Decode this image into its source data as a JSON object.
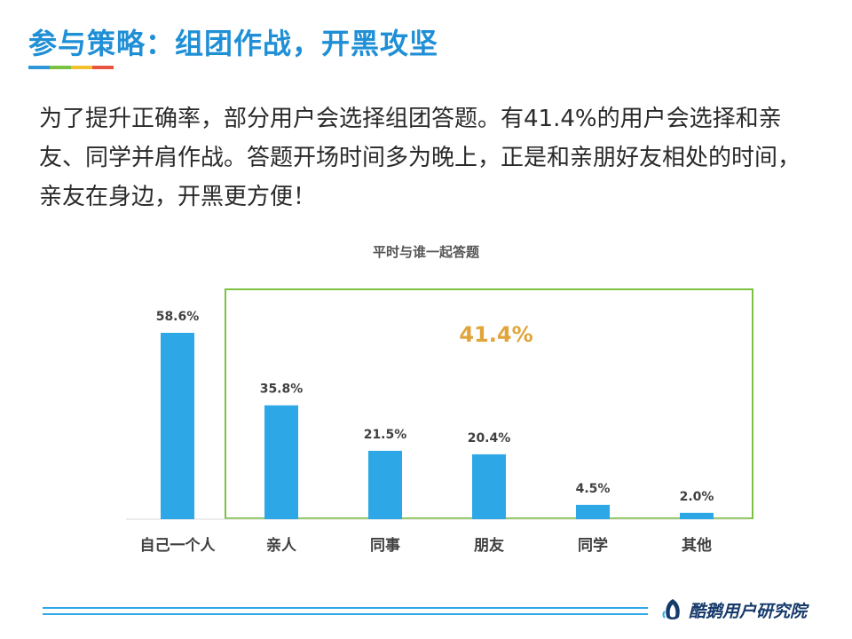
{
  "slide": {
    "title": "参与策略：组团作战，开黑攻坚",
    "paragraph": "为了提升正确率，部分用户会选择组团答题。有41.4%的用户会选择和亲友、同学并肩作战。答题开场时间多为晚上，正是和亲朋好友相处的时间，亲友在身边，开黑更方便！",
    "underline_colors": [
      "#2e97d8",
      "#7cc242",
      "#f2c12e",
      "#e8543f"
    ],
    "title_color": "#1f8fd6"
  },
  "chart_data": {
    "type": "bar",
    "title": "平时与谁一起答题",
    "categories": [
      "自己一个人",
      "亲人",
      "同事",
      "朋友",
      "同学",
      "其他"
    ],
    "values": [
      58.6,
      35.8,
      21.5,
      20.4,
      4.5,
      2.0
    ],
    "value_labels": [
      "58.6%",
      "35.8%",
      "21.5%",
      "20.4%",
      "4.5%",
      "2.0%"
    ],
    "ylim": [
      0,
      60
    ],
    "grid": false,
    "bar_color": "#2ea7e6",
    "highlight": {
      "label": "41.4%",
      "from_category": "亲人",
      "to_category": "其他",
      "box_color": "#7cc242",
      "label_color": "#e0a43a"
    }
  },
  "footer": {
    "brand": "酷鹅用户研究院",
    "line_color": "#2ea7e6"
  }
}
